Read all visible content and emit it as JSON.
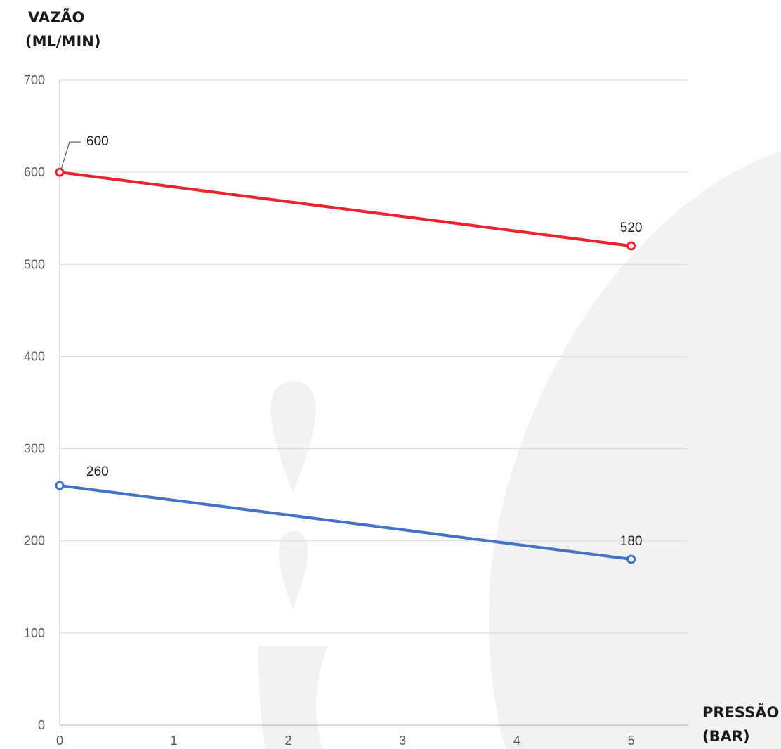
{
  "chart_data": {
    "type": "line",
    "ylabel_line1": "VAZÃO",
    "ylabel_line2": "(ML/MIN)",
    "xlabel_line1": "PRESSÃO",
    "xlabel_line2": "(BAR)",
    "ylim": [
      0,
      700
    ],
    "xlim": [
      0,
      5.5
    ],
    "y_ticks": [
      "0",
      "100",
      "200",
      "300",
      "400",
      "500",
      "600",
      "700"
    ],
    "x_ticks": [
      "0",
      "1",
      "2",
      "3",
      "4",
      "5"
    ],
    "grid": true,
    "series": [
      {
        "color": "#e8252e",
        "x": [
          0,
          5
        ],
        "values": [
          600,
          520
        ],
        "labels": [
          "600",
          "520"
        ]
      },
      {
        "color": "#4472c4",
        "x": [
          0,
          5
        ],
        "values": [
          260,
          180
        ],
        "labels": [
          "260",
          "180"
        ]
      }
    ]
  }
}
